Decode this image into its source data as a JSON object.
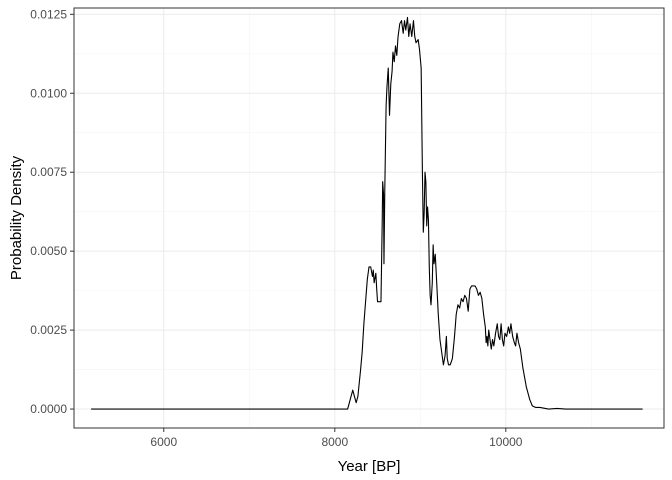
{
  "chart_data": {
    "type": "line",
    "title": "",
    "xlabel": "Year [BP]",
    "ylabel": "Probability Density",
    "xlim": [
      4950,
      11850
    ],
    "ylim": [
      -0.0006,
      0.0127
    ],
    "x_ticks": [
      6000,
      8000,
      10000
    ],
    "x_tick_labels": [
      "6000",
      "8000",
      "10000"
    ],
    "y_ticks": [
      0,
      0.0025,
      0.005,
      0.0075,
      0.01,
      0.0125
    ],
    "y_tick_labels": [
      "0.0000",
      "0.0025",
      "0.0050",
      "0.0075",
      "0.0100",
      "0.0125"
    ],
    "grid": true,
    "legend": "none",
    "colors": {
      "line": "#000000",
      "grid": "#ebebeb",
      "border": "#333333"
    },
    "series": [
      {
        "points": [
          [
            5150,
            0
          ],
          [
            6000,
            0
          ],
          [
            7000,
            0
          ],
          [
            8000,
            0
          ],
          [
            8150,
            0
          ],
          [
            8180,
            0.0003
          ],
          [
            8210,
            0.0006
          ],
          [
            8230,
            0.0004
          ],
          [
            8250,
            0.0002
          ],
          [
            8270,
            0.0004
          ],
          [
            8300,
            0.0012
          ],
          [
            8320,
            0.0018
          ],
          [
            8340,
            0.0027
          ],
          [
            8360,
            0.0034
          ],
          [
            8380,
            0.0041
          ],
          [
            8400,
            0.0045
          ],
          [
            8420,
            0.0045
          ],
          [
            8440,
            0.0042
          ],
          [
            8450,
            0.0044
          ],
          [
            8460,
            0.004
          ],
          [
            8480,
            0.0043
          ],
          [
            8490,
            0.0038
          ],
          [
            8500,
            0.0034
          ],
          [
            8520,
            0.0034
          ],
          [
            8540,
            0.0034
          ],
          [
            8555,
            0.006
          ],
          [
            8560,
            0.0072
          ],
          [
            8570,
            0.0068
          ],
          [
            8575,
            0.0046
          ],
          [
            8585,
            0.007
          ],
          [
            8600,
            0.0096
          ],
          [
            8610,
            0.0102
          ],
          [
            8625,
            0.0108
          ],
          [
            8640,
            0.0093
          ],
          [
            8655,
            0.0103
          ],
          [
            8670,
            0.0107
          ],
          [
            8680,
            0.0113
          ],
          [
            8695,
            0.011
          ],
          [
            8710,
            0.0115
          ],
          [
            8725,
            0.0112
          ],
          [
            8740,
            0.0118
          ],
          [
            8760,
            0.0122
          ],
          [
            8780,
            0.0123
          ],
          [
            8800,
            0.0119
          ],
          [
            8815,
            0.0123
          ],
          [
            8830,
            0.012
          ],
          [
            8850,
            0.0124
          ],
          [
            8865,
            0.0118
          ],
          [
            8880,
            0.0122
          ],
          [
            8900,
            0.0118
          ],
          [
            8920,
            0.0123
          ],
          [
            8935,
            0.0118
          ],
          [
            8950,
            0.0116
          ],
          [
            8975,
            0.0117
          ],
          [
            8990,
            0.0114
          ],
          [
            9010,
            0.0108
          ],
          [
            9025,
            0.0074
          ],
          [
            9035,
            0.0056
          ],
          [
            9045,
            0.0062
          ],
          [
            9055,
            0.0075
          ],
          [
            9065,
            0.0072
          ],
          [
            9075,
            0.0058
          ],
          [
            9085,
            0.0064
          ],
          [
            9095,
            0.006
          ],
          [
            9105,
            0.0045
          ],
          [
            9115,
            0.0036
          ],
          [
            9125,
            0.0033
          ],
          [
            9140,
            0.004
          ],
          [
            9150,
            0.0052
          ],
          [
            9160,
            0.0046
          ],
          [
            9175,
            0.0049
          ],
          [
            9190,
            0.0041
          ],
          [
            9210,
            0.003
          ],
          [
            9230,
            0.0022
          ],
          [
            9250,
            0.0018
          ],
          [
            9270,
            0.0014
          ],
          [
            9290,
            0.0017
          ],
          [
            9305,
            0.0023
          ],
          [
            9315,
            0.0016
          ],
          [
            9330,
            0.0014
          ],
          [
            9350,
            0.0014
          ],
          [
            9375,
            0.0016
          ],
          [
            9400,
            0.0023
          ],
          [
            9420,
            0.003
          ],
          [
            9440,
            0.0033
          ],
          [
            9460,
            0.0032
          ],
          [
            9480,
            0.0035
          ],
          [
            9500,
            0.0034
          ],
          [
            9520,
            0.0036
          ],
          [
            9540,
            0.0035
          ],
          [
            9560,
            0.0031
          ],
          [
            9580,
            0.0038
          ],
          [
            9600,
            0.0039
          ],
          [
            9620,
            0.0039
          ],
          [
            9640,
            0.0039
          ],
          [
            9660,
            0.0038
          ],
          [
            9680,
            0.0036
          ],
          [
            9700,
            0.0037
          ],
          [
            9720,
            0.0035
          ],
          [
            9740,
            0.003
          ],
          [
            9760,
            0.0026
          ],
          [
            9770,
            0.0021
          ],
          [
            9780,
            0.0023
          ],
          [
            9790,
            0.002
          ],
          [
            9800,
            0.0025
          ],
          [
            9815,
            0.0022
          ],
          [
            9830,
            0.0019
          ],
          [
            9845,
            0.0022
          ],
          [
            9860,
            0.002
          ],
          [
            9880,
            0.0024
          ],
          [
            9900,
            0.0027
          ],
          [
            9915,
            0.0023
          ],
          [
            9930,
            0.0022
          ],
          [
            9945,
            0.0027
          ],
          [
            9960,
            0.0022
          ],
          [
            9975,
            0.002
          ],
          [
            9990,
            0.0024
          ],
          [
            10010,
            0.0023
          ],
          [
            10030,
            0.0026
          ],
          [
            10045,
            0.0024
          ],
          [
            10060,
            0.0027
          ],
          [
            10080,
            0.0023
          ],
          [
            10100,
            0.0021
          ],
          [
            10115,
            0.002
          ],
          [
            10130,
            0.0024
          ],
          [
            10150,
            0.0021
          ],
          [
            10170,
            0.0019
          ],
          [
            10185,
            0.0016
          ],
          [
            10200,
            0.0013
          ],
          [
            10220,
            0.001
          ],
          [
            10240,
            0.0007
          ],
          [
            10260,
            0.0005
          ],
          [
            10280,
            0.0003
          ],
          [
            10310,
            0.0001
          ],
          [
            10350,
            5e-05
          ],
          [
            10400,
            5e-05
          ],
          [
            10500,
            0
          ],
          [
            10600,
            2e-05
          ],
          [
            10700,
            0
          ],
          [
            11000,
            0
          ],
          [
            11600,
            0
          ]
        ]
      }
    ]
  }
}
